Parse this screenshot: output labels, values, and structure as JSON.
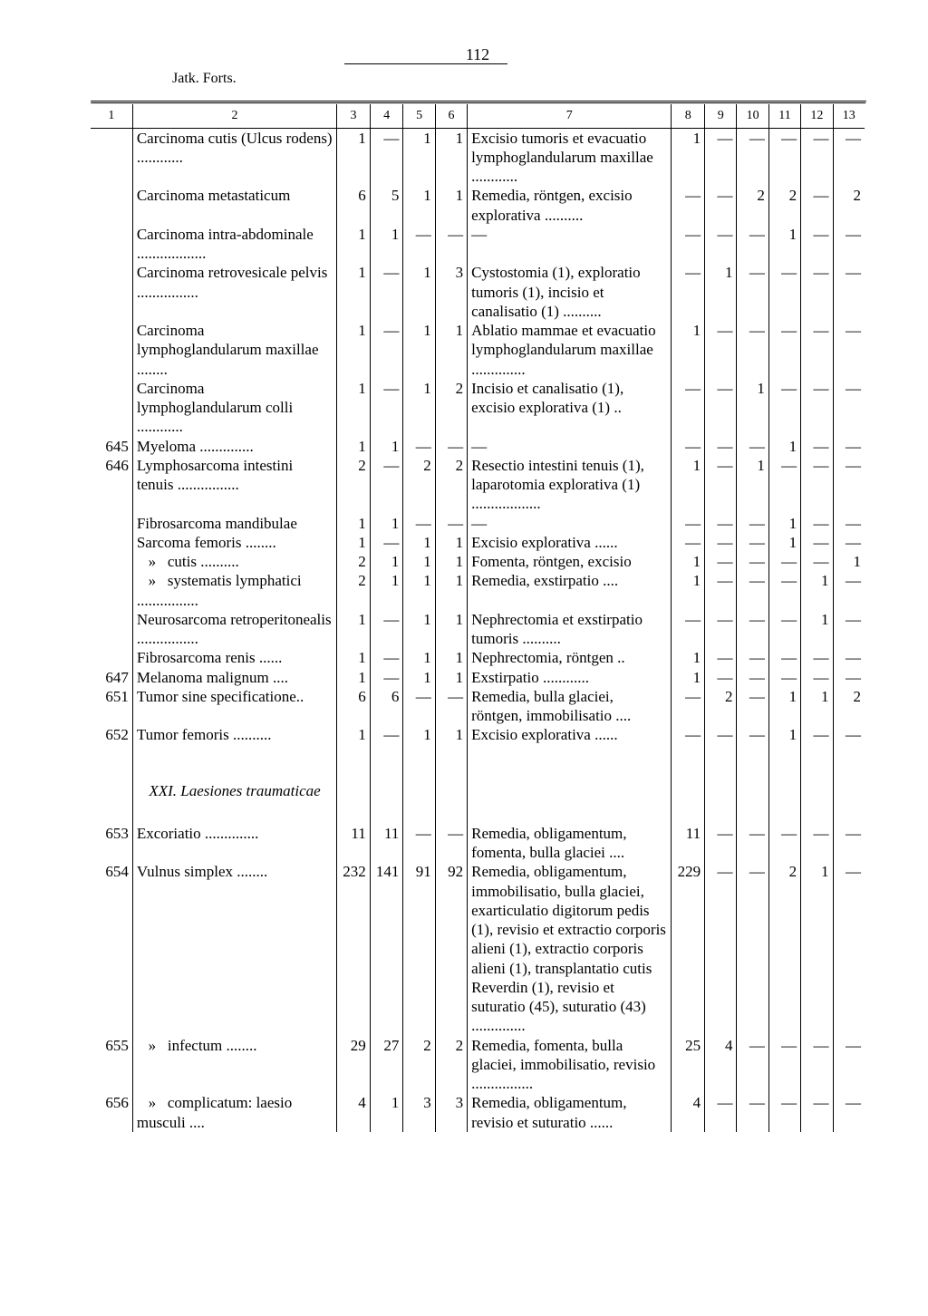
{
  "page_number": "112",
  "continuation": "Jatk. Forts.",
  "columns": [
    "1",
    "2",
    "3",
    "4",
    "5",
    "6",
    "7",
    "8",
    "9",
    "10",
    "11",
    "12",
    "13"
  ],
  "rows": [
    {
      "c1": "",
      "c2": "Carcinoma cutis (Ulcus rodens) ............",
      "c3": "1",
      "c4": "—",
      "c5": "1",
      "c6": "1",
      "c7": "Excisio tumoris et evacuatio lymphoglandularum maxillae ............",
      "c8": "1",
      "c9": "—",
      "c10": "—",
      "c11": "—",
      "c12": "—",
      "c13": "—"
    },
    {
      "c1": "",
      "c2": "Carcinoma metastaticum",
      "c3": "6",
      "c4": "5",
      "c5": "1",
      "c6": "1",
      "c7": "Remedia, röntgen, excisio explorativa ..........",
      "c8": "—",
      "c9": "—",
      "c10": "2",
      "c11": "2",
      "c12": "—",
      "c13": "2"
    },
    {
      "c1": "",
      "c2": "Carcinoma intra-abdominale ..................",
      "c3": "1",
      "c4": "1",
      "c5": "—",
      "c6": "—",
      "c7": "—",
      "c8": "—",
      "c9": "—",
      "c10": "—",
      "c11": "1",
      "c12": "—",
      "c13": "—"
    },
    {
      "c1": "",
      "c2": "Carcinoma retrovesicale pelvis ................",
      "c3": "1",
      "c4": "—",
      "c5": "1",
      "c6": "3",
      "c7": "Cystostomia (1), exploratio tumoris (1), incisio et canalisatio (1) ..........",
      "c8": "—",
      "c9": "1",
      "c10": "—",
      "c11": "—",
      "c12": "—",
      "c13": "—"
    },
    {
      "c1": "",
      "c2": "Carcinoma lymphoglandularum maxillae ........",
      "c3": "1",
      "c4": "—",
      "c5": "1",
      "c6": "1",
      "c7": "Ablatio mammae et evacuatio lymphoglandularum maxillae ..............",
      "c8": "1",
      "c9": "—",
      "c10": "—",
      "c11": "—",
      "c12": "—",
      "c13": "—"
    },
    {
      "c1": "",
      "c2": "Carcinoma lymphoglandularum colli ............",
      "c3": "1",
      "c4": "—",
      "c5": "1",
      "c6": "2",
      "c7": "Incisio et canalisatio (1), excisio explorativa (1) ..",
      "c8": "—",
      "c9": "—",
      "c10": "1",
      "c11": "—",
      "c12": "—",
      "c13": "—"
    },
    {
      "c1": "645",
      "c2": "Myeloma ..............",
      "c3": "1",
      "c4": "1",
      "c5": "—",
      "c6": "—",
      "c7": "—",
      "c8": "—",
      "c9": "—",
      "c10": "—",
      "c11": "1",
      "c12": "—",
      "c13": "—"
    },
    {
      "c1": "646",
      "c2": "Lymphosarcoma intestini tenuis ................",
      "c3": "2",
      "c4": "—",
      "c5": "2",
      "c6": "2",
      "c7": "Resectio intestini tenuis (1), laparotomia explorativa (1) ..................",
      "c8": "1",
      "c9": "—",
      "c10": "1",
      "c11": "—",
      "c12": "—",
      "c13": "—"
    },
    {
      "c1": "",
      "c2": "Fibrosarcoma mandibulae",
      "c3": "1",
      "c4": "1",
      "c5": "—",
      "c6": "—",
      "c7": "—",
      "c8": "—",
      "c9": "—",
      "c10": "—",
      "c11": "1",
      "c12": "—",
      "c13": "—"
    },
    {
      "c1": "",
      "c2": "Sarcoma femoris ........",
      "c3": "1",
      "c4": "—",
      "c5": "1",
      "c6": "1",
      "c7": "Excisio explorativa ......",
      "c8": "—",
      "c9": "—",
      "c10": "—",
      "c11": "1",
      "c12": "—",
      "c13": "—"
    },
    {
      "c1": "",
      "c2": "   »   cutis ..........",
      "c3": "2",
      "c4": "1",
      "c5": "1",
      "c6": "1",
      "c7": "Fomenta, röntgen, excisio",
      "c8": "1",
      "c9": "—",
      "c10": "—",
      "c11": "—",
      "c12": "—",
      "c13": "1"
    },
    {
      "c1": "",
      "c2": "   »   systematis lymphatici ................",
      "c3": "2",
      "c4": "1",
      "c5": "1",
      "c6": "1",
      "c7": "Remedia, exstirpatio ....",
      "c8": "1",
      "c9": "—",
      "c10": "—",
      "c11": "—",
      "c12": "1",
      "c13": "—"
    },
    {
      "c1": "",
      "c2": "Neurosarcoma retroperitonealis ................",
      "c3": "1",
      "c4": "—",
      "c5": "1",
      "c6": "1",
      "c7": "Nephrectomia et exstirpatio tumoris ..........",
      "c8": "—",
      "c9": "—",
      "c10": "—",
      "c11": "—",
      "c12": "1",
      "c13": "—"
    },
    {
      "c1": "",
      "c2": "Fibrosarcoma renis ......",
      "c3": "1",
      "c4": "—",
      "c5": "1",
      "c6": "1",
      "c7": "Nephrectomia, röntgen ..",
      "c8": "1",
      "c9": "—",
      "c10": "—",
      "c11": "—",
      "c12": "—",
      "c13": "—"
    },
    {
      "c1": "647",
      "c2": "Melanoma malignum ....",
      "c3": "1",
      "c4": "—",
      "c5": "1",
      "c6": "1",
      "c7": "Exstirpatio ............",
      "c8": "1",
      "c9": "—",
      "c10": "—",
      "c11": "—",
      "c12": "—",
      "c13": "—"
    },
    {
      "c1": "651",
      "c2": "Tumor sine specificatione..",
      "c3": "6",
      "c4": "6",
      "c5": "—",
      "c6": "—",
      "c7": "Remedia, bulla glaciei, röntgen, immobilisatio ....",
      "c8": "—",
      "c9": "2",
      "c10": "—",
      "c11": "1",
      "c12": "1",
      "c13": "2"
    },
    {
      "c1": "652",
      "c2": "Tumor femoris ..........",
      "c3": "1",
      "c4": "—",
      "c5": "1",
      "c6": "1",
      "c7": "Excisio explorativa ......",
      "c8": "—",
      "c9": "—",
      "c10": "—",
      "c11": "1",
      "c12": "—",
      "c13": "—"
    },
    {
      "section": "XXI. Laesiones traumaticae"
    },
    {
      "c1": "653",
      "c2": "Excoriatio ..............",
      "c3": "11",
      "c4": "11",
      "c5": "—",
      "c6": "—",
      "c7": "Remedia, obligamentum, fomenta, bulla glaciei ....",
      "c8": "11",
      "c9": "—",
      "c10": "—",
      "c11": "—",
      "c12": "—",
      "c13": "—"
    },
    {
      "c1": "654",
      "c2": "Vulnus simplex ........",
      "c3": "232",
      "c4": "141",
      "c5": "91",
      "c6": "92",
      "c7": "Remedia, obligamentum, immobilisatio, bulla glaciei, exarticulatio digitorum pedis (1), revisio et extractio corporis alieni (1), extractio corporis alieni (1), transplantatio cutis Reverdin (1), revisio et suturatio (45), suturatio (43) ..............",
      "c8": "229",
      "c9": "—",
      "c10": "—",
      "c11": "2",
      "c12": "1",
      "c13": "—"
    },
    {
      "c1": "655",
      "c2": "   »   infectum ........",
      "c3": "29",
      "c4": "27",
      "c5": "2",
      "c6": "2",
      "c7": "Remedia, fomenta, bulla glaciei, immobilisatio, revisio ................",
      "c8": "25",
      "c9": "4",
      "c10": "—",
      "c11": "—",
      "c12": "—",
      "c13": "—"
    },
    {
      "c1": "656",
      "c2": "   »   complicatum: laesio musculi ....",
      "c3": "4",
      "c4": "1",
      "c5": "3",
      "c6": "3",
      "c7": "Remedia, obligamentum, revisio et suturatio ......",
      "c8": "4",
      "c9": "—",
      "c10": "—",
      "c11": "—",
      "c12": "—",
      "c13": "—"
    }
  ]
}
